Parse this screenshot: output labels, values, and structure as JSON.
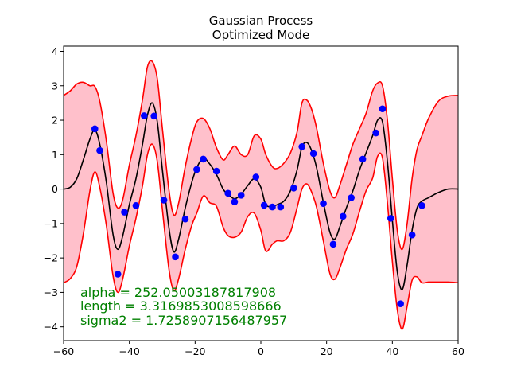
{
  "chart_data": {
    "type": "line",
    "title": "Gaussian Process",
    "subtitle": "Optimized Mode",
    "xlabel": "",
    "ylabel": "",
    "xlim": [
      -60,
      60
    ],
    "ylim": [
      -4.4,
      4.15
    ],
    "x_ticks": [
      -60,
      -40,
      -20,
      0,
      20,
      40,
      60
    ],
    "y_ticks": [
      -4,
      -3,
      -2,
      -1,
      0,
      1,
      2,
      3,
      4
    ],
    "grid": false,
    "colors": {
      "mean": "#000000",
      "bounds": "#ff0000",
      "band_fill": "#ffc0cb",
      "points": "#0000ff",
      "annotation": "#008000"
    },
    "annotations": [
      "alpha = 252.05003187817908",
      "length = 3.3169853008598666",
      "sigma2 = 1.7258907156487957"
    ],
    "observations": {
      "x": [
        -50.5,
        -49.0,
        -43.5,
        -41.5,
        -38.0,
        -35.5,
        -32.5,
        -29.5,
        -26.0,
        -23.0,
        -19.5,
        -17.5,
        -13.5,
        -10.0,
        -8.0,
        -6.0,
        -1.5,
        1.0,
        3.5,
        6.0,
        10.0,
        12.5,
        16.0,
        19.0,
        22.0,
        25.0,
        27.5,
        31.0,
        35.0,
        37.0,
        39.5,
        42.5,
        46.0,
        49.0
      ],
      "y": [
        1.75,
        1.12,
        -2.47,
        -0.67,
        -0.48,
        2.13,
        2.12,
        -0.32,
        -1.97,
        -0.87,
        0.57,
        0.87,
        0.52,
        -0.12,
        -0.37,
        -0.18,
        0.35,
        -0.47,
        -0.52,
        -0.52,
        0.03,
        1.23,
        1.03,
        -0.42,
        -1.6,
        -0.79,
        -0.25,
        0.87,
        1.63,
        2.33,
        -0.85,
        -3.33,
        -1.33,
        -0.48
      ]
    },
    "series": [
      {
        "role": "mean",
        "x": [
          -60,
          -58,
          -56,
          -54,
          -52,
          -50.5,
          -49,
          -47,
          -45,
          -43.5,
          -42,
          -40,
          -38,
          -36,
          -34.5,
          -33,
          -31.5,
          -30,
          -28,
          -26.5,
          -25,
          -23,
          -21,
          -19.5,
          -17.5,
          -15.5,
          -13.5,
          -11.5,
          -10,
          -8,
          -6,
          -4,
          -2,
          0,
          1.5,
          3.5,
          5,
          7,
          9,
          11,
          12.5,
          14,
          15.5,
          17,
          19,
          21,
          22.5,
          24,
          26,
          28,
          30,
          32,
          34,
          35.5,
          37,
          38.5,
          40,
          41.5,
          43,
          44.5,
          46,
          47.5,
          49,
          51,
          54,
          57,
          60
        ],
        "y": [
          0.0,
          0.05,
          0.3,
          0.85,
          1.45,
          1.72,
          1.3,
          0.2,
          -1.3,
          -1.75,
          -1.35,
          -0.45,
          0.3,
          1.3,
          2.15,
          2.5,
          1.95,
          0.6,
          -1.1,
          -1.82,
          -1.45,
          -0.55,
          0.2,
          0.62,
          0.9,
          0.72,
          0.42,
          0.0,
          -0.15,
          -0.28,
          -0.15,
          0.1,
          0.3,
          0.05,
          -0.45,
          -0.5,
          -0.45,
          -0.35,
          -0.05,
          0.55,
          1.22,
          1.35,
          1.1,
          0.6,
          -0.38,
          -1.25,
          -1.45,
          -1.1,
          -0.55,
          -0.05,
          0.55,
          1.05,
          1.55,
          2.0,
          1.95,
          0.8,
          -0.9,
          -2.4,
          -2.92,
          -2.2,
          -1.2,
          -0.55,
          -0.35,
          -0.25,
          -0.1,
          0.0,
          0.0
        ]
      },
      {
        "role": "upper-bound",
        "x": [
          -60,
          -58,
          -56,
          -54,
          -52,
          -50.5,
          -49,
          -47,
          -45,
          -43.5,
          -42,
          -40,
          -38,
          -36,
          -34.5,
          -33,
          -31.5,
          -30,
          -28,
          -26.5,
          -25,
          -23,
          -21,
          -19.5,
          -17.5,
          -15.5,
          -13.5,
          -11.5,
          -10,
          -8,
          -6,
          -4,
          -2,
          0,
          1.5,
          3.5,
          5,
          7,
          9,
          11,
          12.5,
          14,
          15.5,
          17,
          19,
          21,
          22.5,
          24,
          26,
          28,
          30,
          32,
          34,
          35.5,
          37,
          38.5,
          40,
          41.5,
          43,
          44.5,
          46,
          47.5,
          49,
          51,
          54,
          57,
          60
        ],
        "y": [
          2.72,
          2.85,
          3.05,
          3.1,
          3.0,
          2.98,
          2.55,
          1.4,
          -0.1,
          -0.55,
          -0.3,
          0.7,
          1.55,
          2.6,
          3.55,
          3.7,
          3.2,
          1.8,
          0.0,
          -0.75,
          -0.4,
          0.65,
          1.5,
          1.95,
          2.05,
          1.75,
          1.2,
          0.85,
          1.0,
          1.25,
          1.0,
          1.0,
          1.55,
          1.45,
          1.0,
          0.65,
          0.6,
          0.75,
          1.05,
          1.65,
          2.5,
          2.58,
          2.3,
          1.75,
          0.75,
          -0.05,
          -0.25,
          0.1,
          0.7,
          1.3,
          1.75,
          2.2,
          2.85,
          3.08,
          3.0,
          2.0,
          0.3,
          -1.2,
          -1.75,
          -1.0,
          0.3,
          1.15,
          1.55,
          2.05,
          2.55,
          2.7,
          2.72
        ]
      },
      {
        "role": "lower-bound",
        "x": [
          -60,
          -58,
          -56,
          -54,
          -52,
          -50.5,
          -49,
          -47,
          -45,
          -43.5,
          -42,
          -40,
          -38,
          -36,
          -34.5,
          -33,
          -31.5,
          -30,
          -28,
          -26.5,
          -25,
          -23,
          -21,
          -19.5,
          -17.5,
          -15.5,
          -13.5,
          -11.5,
          -10,
          -8,
          -6,
          -4,
          -2,
          0,
          1.5,
          3.5,
          5,
          7,
          9,
          11,
          12.5,
          14,
          15.5,
          17,
          19,
          21,
          22.5,
          24,
          26,
          28,
          30,
          32,
          34,
          35.5,
          37,
          38.5,
          40,
          41.5,
          43,
          44.5,
          46,
          47.5,
          49,
          51,
          54,
          57,
          60
        ],
        "y": [
          -2.72,
          -2.6,
          -2.25,
          -1.3,
          -0.05,
          0.5,
          0.05,
          -1.05,
          -2.5,
          -3.0,
          -2.6,
          -1.65,
          -0.85,
          0.1,
          1.0,
          1.3,
          0.8,
          -0.55,
          -2.3,
          -2.95,
          -2.6,
          -1.75,
          -1.05,
          -0.7,
          -0.2,
          -0.4,
          -0.5,
          -1.1,
          -1.35,
          -1.4,
          -1.25,
          -0.8,
          -0.7,
          -1.2,
          -1.8,
          -1.6,
          -1.5,
          -1.5,
          -1.25,
          -0.55,
          0.0,
          0.15,
          -0.1,
          -0.55,
          -1.5,
          -2.45,
          -2.62,
          -2.3,
          -1.75,
          -1.3,
          -0.65,
          -0.05,
          0.32,
          0.95,
          0.9,
          -0.4,
          -2.1,
          -3.5,
          -4.07,
          -3.4,
          -2.65,
          -2.55,
          -2.72,
          -2.7,
          -2.7,
          -2.7,
          -2.72
        ]
      }
    ]
  }
}
